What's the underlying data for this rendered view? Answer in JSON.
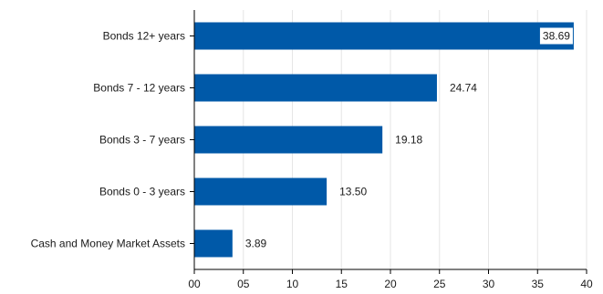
{
  "chart_data": {
    "type": "bar",
    "orientation": "horizontal",
    "categories": [
      "Bonds 12+ years",
      "Bonds 7 - 12 years",
      "Bonds 3 - 7 years",
      "Bonds 0 - 3 years",
      "Cash and Money Market Assets"
    ],
    "values": [
      38.69,
      24.74,
      19.18,
      13.5,
      3.89
    ],
    "value_labels": [
      "38.69",
      "24.74",
      "19.18",
      "13.50",
      "3.89"
    ],
    "xlim": [
      0,
      40
    ],
    "x_ticks": [
      "00",
      "05",
      "10",
      "15",
      "20",
      "25",
      "30",
      "35",
      "40"
    ],
    "x_tick_values": [
      0,
      5,
      10,
      15,
      20,
      25,
      30,
      35,
      40
    ],
    "grid": "vertical",
    "bar_color": "#0059a8",
    "title": "",
    "xlabel": "",
    "ylabel": ""
  }
}
